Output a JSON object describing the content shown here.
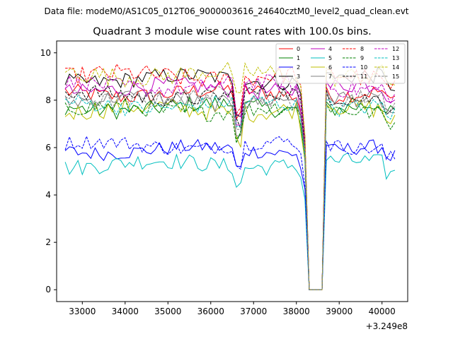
{
  "chart_data": {
    "type": "line",
    "suptitle": "Data file: modeM0/AS1C05_012T06_9000003616_24640cztM0_level2_quad_clean.evt",
    "title": "Quadrant 3 module wise count rates with 100.0s bins.",
    "xlabel": "",
    "ylabel": "",
    "x_offset_label": "+3.249e8",
    "xlim": [
      32400,
      40600
    ],
    "ylim": [
      -0.5,
      10.5
    ],
    "xticks": [
      33000,
      34000,
      35000,
      36000,
      37000,
      38000,
      39000,
      40000
    ],
    "yticks": [
      0,
      2,
      4,
      6,
      8,
      10
    ],
    "x_start": 32600,
    "x_step": 100,
    "x_end": 40300,
    "gap": {
      "drop_start": 38200,
      "zero_from": 38300,
      "zero_to": 38600,
      "rise_end": 38700
    },
    "legend_location": "top-right",
    "series": [
      {
        "name": "0",
        "color": "#ff0000",
        "dash": false,
        "base": 8.3,
        "noise": 0.35
      },
      {
        "name": "1",
        "color": "#008000",
        "dash": false,
        "base": 7.7,
        "noise": 0.35
      },
      {
        "name": "2",
        "color": "#0000ff",
        "dash": false,
        "base": 5.9,
        "noise": 0.3
      },
      {
        "name": "3",
        "color": "#000000",
        "dash": false,
        "base": 8.9,
        "noise": 0.35
      },
      {
        "name": "4",
        "color": "#bf00bf",
        "dash": false,
        "base": 8.5,
        "noise": 0.35
      },
      {
        "name": "5",
        "color": "#00bfbf",
        "dash": false,
        "base": 5.3,
        "noise": 0.35
      },
      {
        "name": "6",
        "color": "#bfbf00",
        "dash": false,
        "base": 7.6,
        "noise": 0.4
      },
      {
        "name": "7",
        "color": "#808080",
        "dash": false,
        "base": 8.0,
        "noise": 0.35
      },
      {
        "name": "8",
        "color": "#ff0000",
        "dash": true,
        "base": 9.0,
        "noise": 0.4
      },
      {
        "name": "9",
        "color": "#008000",
        "dash": true,
        "base": 7.6,
        "noise": 0.35
      },
      {
        "name": "10",
        "color": "#0000ff",
        "dash": true,
        "base": 6.1,
        "noise": 0.3
      },
      {
        "name": "11",
        "color": "#000000",
        "dash": true,
        "base": 8.2,
        "noise": 0.35
      },
      {
        "name": "12",
        "color": "#bf00bf",
        "dash": true,
        "base": 8.6,
        "noise": 0.35
      },
      {
        "name": "13",
        "color": "#00bfbf",
        "dash": true,
        "base": 7.8,
        "noise": 0.35
      },
      {
        "name": "14",
        "color": "#bfbf00",
        "dash": true,
        "base": 9.1,
        "noise": 0.4
      },
      {
        "name": "15",
        "color": "#808080",
        "dash": true,
        "base": 8.1,
        "noise": 0.35
      }
    ]
  }
}
